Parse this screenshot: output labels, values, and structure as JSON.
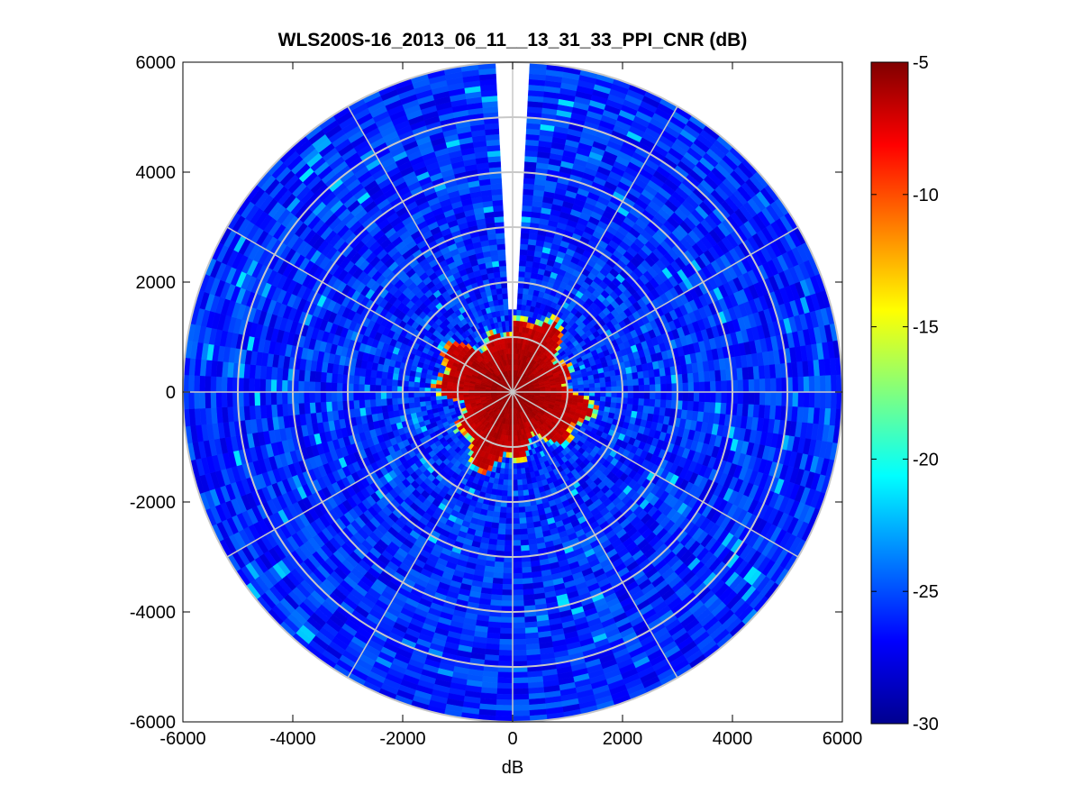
{
  "chart_data": {
    "type": "heatmap",
    "projection": "polar-ppi",
    "title": "WLS200S-16_2013_06_11__13_31_33_PPI_CNR (dB)",
    "xlabel": "dB",
    "ylabel": "",
    "xlim": [
      -6000,
      6000
    ],
    "ylim": [
      -6000,
      6000
    ],
    "x_ticks": [
      "-6000",
      "-4000",
      "-2000",
      "0",
      "2000",
      "4000",
      "6000"
    ],
    "y_ticks": [
      "6000",
      "4000",
      "2000",
      "0",
      "-2000",
      "-4000",
      "-6000"
    ],
    "max_range": 6000,
    "range_rings": [
      1000,
      2000,
      3000,
      4000,
      5000,
      6000
    ],
    "azimuth_spokes_deg": [
      0,
      30,
      60,
      90,
      120,
      150,
      180,
      210,
      240,
      270,
      300,
      330
    ],
    "missing_sector_deg": [
      -3,
      3
    ],
    "grid": true,
    "colorbar": {
      "range": [
        -30,
        -5
      ],
      "ticks": [
        "-5",
        "-10",
        "-15",
        "-20",
        "-25",
        "-30"
      ],
      "colormap": "jet",
      "placement": "right"
    },
    "features": {
      "near_field_range_approx": 1500,
      "near_field_cnr": -5,
      "far_field_cnr": -26
    }
  }
}
